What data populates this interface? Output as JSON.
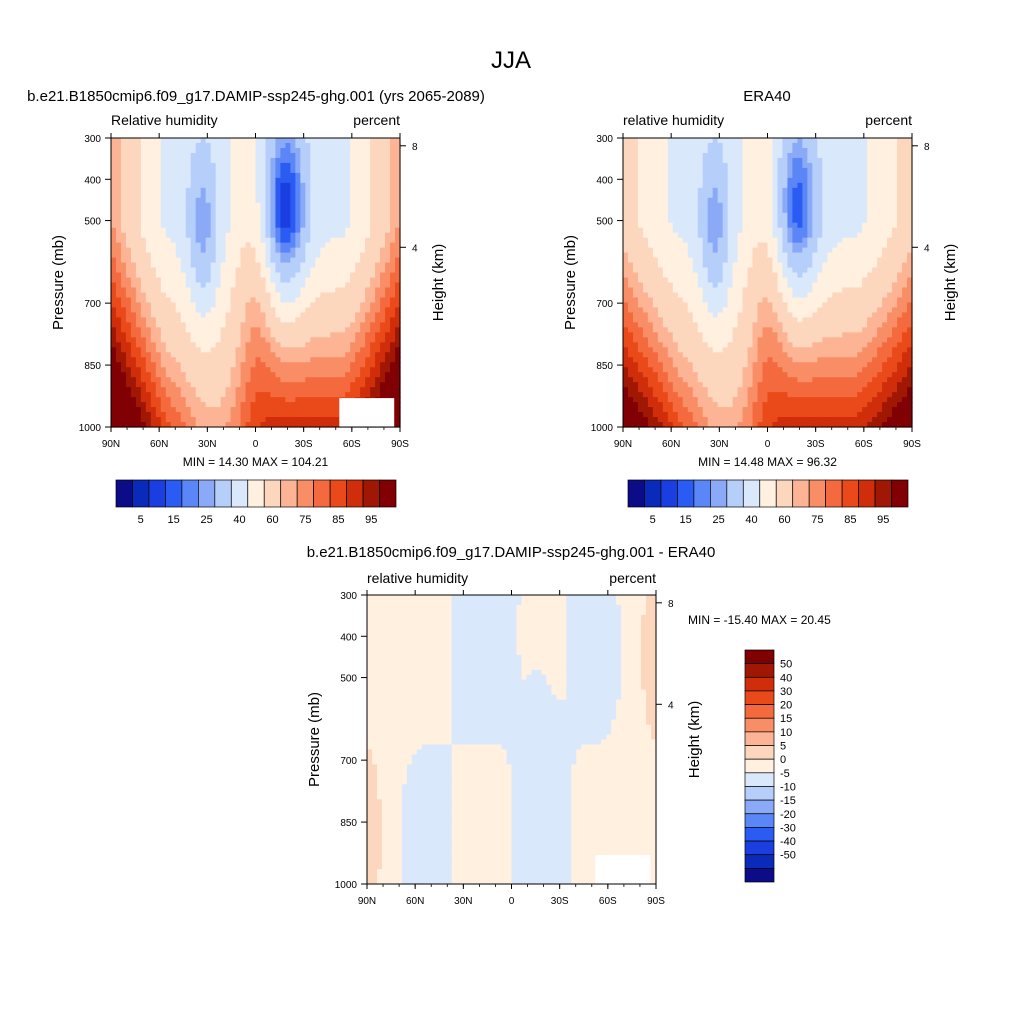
{
  "main_title": "JJA",
  "panels": [
    {
      "title": "b.e21.B1850cmip6.f09_g17.DAMIP-ssp245-ghg.001 (yrs 2065-2089)",
      "left_label": "Relative humidity",
      "right_label": "percent",
      "stats": "MIN =  14.30   MAX = 104.21"
    },
    {
      "title": "ERA40",
      "left_label": "relative humidity",
      "right_label": "percent",
      "stats": "MIN =  14.48   MAX =  96.32"
    },
    {
      "title": "b.e21.B1850cmip6.f09_g17.DAMIP-ssp245-ghg.001 - ERA40",
      "left_label": "relative humidity",
      "right_label": "percent",
      "stats": "MIN = -15.40   MAX =  20.45"
    }
  ],
  "chart_data": [
    {
      "type": "heatmap",
      "colorbar_colors": [
        "#0c0c88",
        "#0a2aba",
        "#1a3ee0",
        "#2a5cf4",
        "#5a86f8",
        "#8aaaf8",
        "#b6cefa",
        "#dae8fc",
        "#fff0e0",
        "#fdd6be",
        "#fcb494",
        "#f98e66",
        "#f46a3e",
        "#ea4a1a",
        "#d02e0a",
        "#a01804",
        "#800004"
      ],
      "y_ticks": [
        {
          "p": 300,
          "label": "300"
        },
        {
          "p": 400,
          "label": "400"
        },
        {
          "p": 500,
          "label": "500"
        },
        {
          "p": 700,
          "label": "700"
        },
        {
          "p": 850,
          "label": "850"
        },
        {
          "p": 1000,
          "label": "1000"
        }
      ],
      "x_ticks": [
        "90N",
        "60N",
        "30N",
        "0",
        "30S",
        "60S",
        "90S"
      ],
      "height_ticks": [
        {
          "km": 8,
          "label": "8"
        },
        {
          "km": 4,
          "label": "4"
        }
      ],
      "colorbar_labels": [
        "5",
        "15",
        "25",
        "40",
        "60",
        "75",
        "85",
        "95"
      ],
      "ylabel": "Pressure (mb)",
      "right_ylabel": "Height (km)",
      "ylim": [
        1000,
        300
      ],
      "xlim": [
        90,
        -90
      ]
    },
    {
      "type": "heatmap",
      "colorbar_colors": [
        "#0c0c88",
        "#0a2aba",
        "#1a3ee0",
        "#2a5cf4",
        "#5a86f8",
        "#8aaaf8",
        "#b6cefa",
        "#dae8fc",
        "#fff0e0",
        "#fdd6be",
        "#fcb494",
        "#f98e66",
        "#f46a3e",
        "#ea4a1a",
        "#d02e0a",
        "#a01804",
        "#800004"
      ],
      "y_ticks": [
        {
          "p": 300,
          "label": "300"
        },
        {
          "p": 400,
          "label": "400"
        },
        {
          "p": 500,
          "label": "500"
        },
        {
          "p": 700,
          "label": "700"
        },
        {
          "p": 850,
          "label": "850"
        },
        {
          "p": 1000,
          "label": "1000"
        }
      ],
      "x_ticks": [
        "90N",
        "60N",
        "30N",
        "0",
        "30S",
        "60S",
        "90S"
      ],
      "height_ticks": [
        {
          "km": 8,
          "label": "8"
        },
        {
          "km": 4,
          "label": "4"
        }
      ],
      "colorbar_labels": [
        "5",
        "15",
        "25",
        "40",
        "60",
        "75",
        "85",
        "95"
      ],
      "ylabel": "Pressure (mb)",
      "right_ylabel": "Height (km)",
      "ylim": [
        1000,
        300
      ],
      "xlim": [
        90,
        -90
      ]
    },
    {
      "type": "heatmap",
      "colorbar_colors": [
        "#0c0c88",
        "#0a2aba",
        "#1a3ee0",
        "#2a5cf4",
        "#5a86f8",
        "#8aaaf8",
        "#b6cefa",
        "#dae8fc",
        "#fff0e0",
        "#fdd6be",
        "#fcb494",
        "#f98e66",
        "#f46a3e",
        "#ea4a1a",
        "#d02e0a",
        "#a01804",
        "#800004"
      ],
      "y_ticks": [
        {
          "p": 300,
          "label": "300"
        },
        {
          "p": 400,
          "label": "400"
        },
        {
          "p": 500,
          "label": "500"
        },
        {
          "p": 700,
          "label": "700"
        },
        {
          "p": 850,
          "label": "850"
        },
        {
          "p": 1000,
          "label": "1000"
        }
      ],
      "x_ticks": [
        "90N",
        "60N",
        "30N",
        "0",
        "30S",
        "60S",
        "90S"
      ],
      "height_ticks": [
        {
          "km": 8,
          "label": "8"
        },
        {
          "km": 4,
          "label": "4"
        }
      ],
      "colorbar_labels": [
        "50",
        "40",
        "30",
        "20",
        "15",
        "10",
        "5",
        "0",
        "-5",
        "-10",
        "-15",
        "-20",
        "-30",
        "-40",
        "-50"
      ],
      "ylabel": "Pressure (mb)",
      "right_ylabel": "Height (km)",
      "ylim": [
        1000,
        300
      ],
      "xlim": [
        90,
        -90
      ]
    }
  ]
}
